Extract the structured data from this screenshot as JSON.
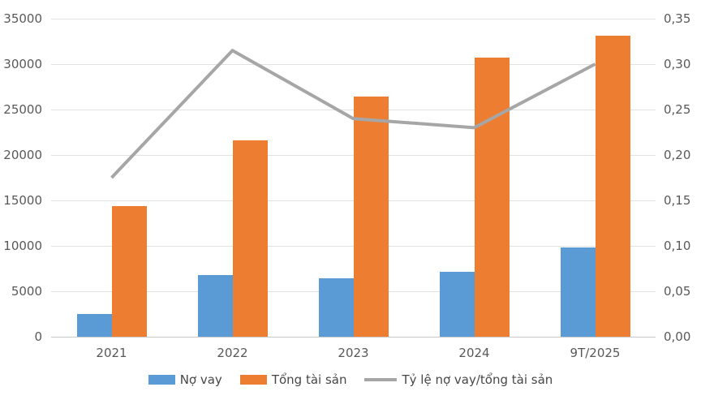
{
  "chart_data": {
    "type": "combo",
    "categories": [
      "2021",
      "2022",
      "2023",
      "2024",
      "9T/2025"
    ],
    "series": [
      {
        "name": "Nợ vay",
        "type": "bar",
        "axis": "left",
        "color": "#5B9BD5",
        "values": [
          2500,
          6800,
          6400,
          7100,
          9800
        ]
      },
      {
        "name": "Tổng tài sản",
        "type": "bar",
        "axis": "left",
        "color": "#ED7D31",
        "values": [
          14400,
          21600,
          26400,
          30700,
          33100
        ]
      },
      {
        "name": "Tỷ lệ nợ vay/tổng tài sản",
        "type": "line",
        "axis": "right",
        "color": "#A6A6A6",
        "values": [
          0.175,
          0.315,
          0.24,
          0.23,
          0.3
        ]
      }
    ],
    "left_axis": {
      "min": 0,
      "max": 35000,
      "step": 5000,
      "ticks": [
        "0",
        "5000",
        "10000",
        "15000",
        "20000",
        "25000",
        "30000",
        "35000"
      ]
    },
    "right_axis": {
      "min": 0,
      "max": 0.35,
      "step": 0.05,
      "ticks": [
        "0,00",
        "0,05",
        "0,10",
        "0,15",
        "0,20",
        "0,25",
        "0,30",
        "0,35"
      ]
    },
    "title": "",
    "xlabel": "",
    "ylabel": "",
    "grid": true,
    "legend_position": "bottom"
  },
  "colors": {
    "bar_no_vay": "#5B9BD5",
    "bar_tong_tai_san": "#ED7D31",
    "ratio_line": "#A6A6A6",
    "gridline": "#E2E2E2",
    "axis_line": "#C9C9C9",
    "tick_text": "#595959"
  }
}
